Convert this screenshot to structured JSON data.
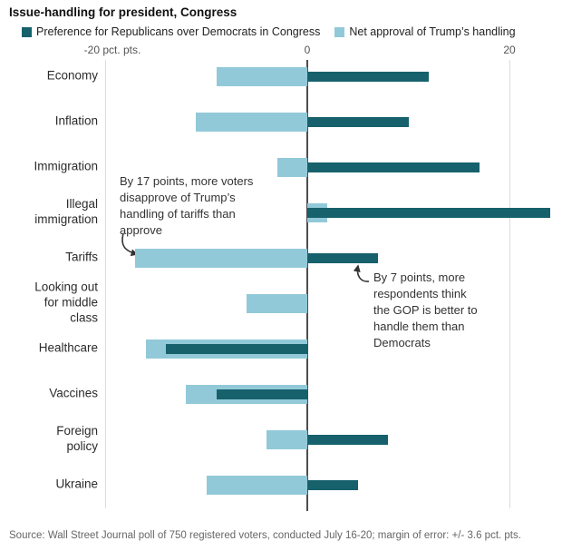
{
  "title": "Issue-handling for president, Congress",
  "legend": {
    "items": [
      {
        "label": "Preference for Republicans over Democrats in Congress",
        "color": "#16616c"
      },
      {
        "label": "Net approval of Trump’s handling",
        "color": "#92c9d9"
      }
    ]
  },
  "annotations": [
    {
      "text": "By 17 points, more voters\ndisapprove of Trump’s\nhandling of tariffs than\napprove"
    },
    {
      "text": "By 7 points, more\nrespondents think\nthe GOP is better to\nhandle them than\nDemocrats"
    }
  ],
  "source": "Source: Wall Street Journal poll of 750 registered voters, conducted July 16-20; margin of error: +/- 3.6 pct. pts.",
  "colors": {
    "gop_series": "#16616c",
    "approval_series": "#92c9d9",
    "zero_line": "#4d4d4d",
    "gridline": "#dcdcdc"
  },
  "chart_data": {
    "type": "bar",
    "orientation": "horizontal",
    "title": "Issue-handling for president, Congress",
    "unit": "pct. pts.",
    "categories": [
      "Economy",
      "Inflation",
      "Immigration",
      "Illegal\nimmigration",
      "Tariffs",
      "Looking out\nfor middle\nclass",
      "Healthcare",
      "Vaccines",
      "Foreign\npolicy",
      "Ukraine"
    ],
    "series": [
      {
        "name": "Preference for Republicans over Democrats in Congress",
        "color": "#16616c",
        "values": [
          12,
          10,
          17,
          24,
          7,
          0,
          -14,
          -9,
          8,
          5
        ]
      },
      {
        "name": "Net approval of Trump’s handling",
        "color": "#92c9d9",
        "values": [
          -9,
          -11,
          -3,
          2,
          -17,
          -6,
          -16,
          -12,
          -4,
          -10
        ]
      }
    ],
    "x_ticks": [
      {
        "value": -20,
        "label": "-20 pct. pts."
      },
      {
        "value": 0,
        "label": "0"
      },
      {
        "value": 20,
        "label": "20"
      }
    ],
    "xlim": [
      -20,
      24.5
    ],
    "grid": "vertical",
    "legend_position": "top"
  }
}
